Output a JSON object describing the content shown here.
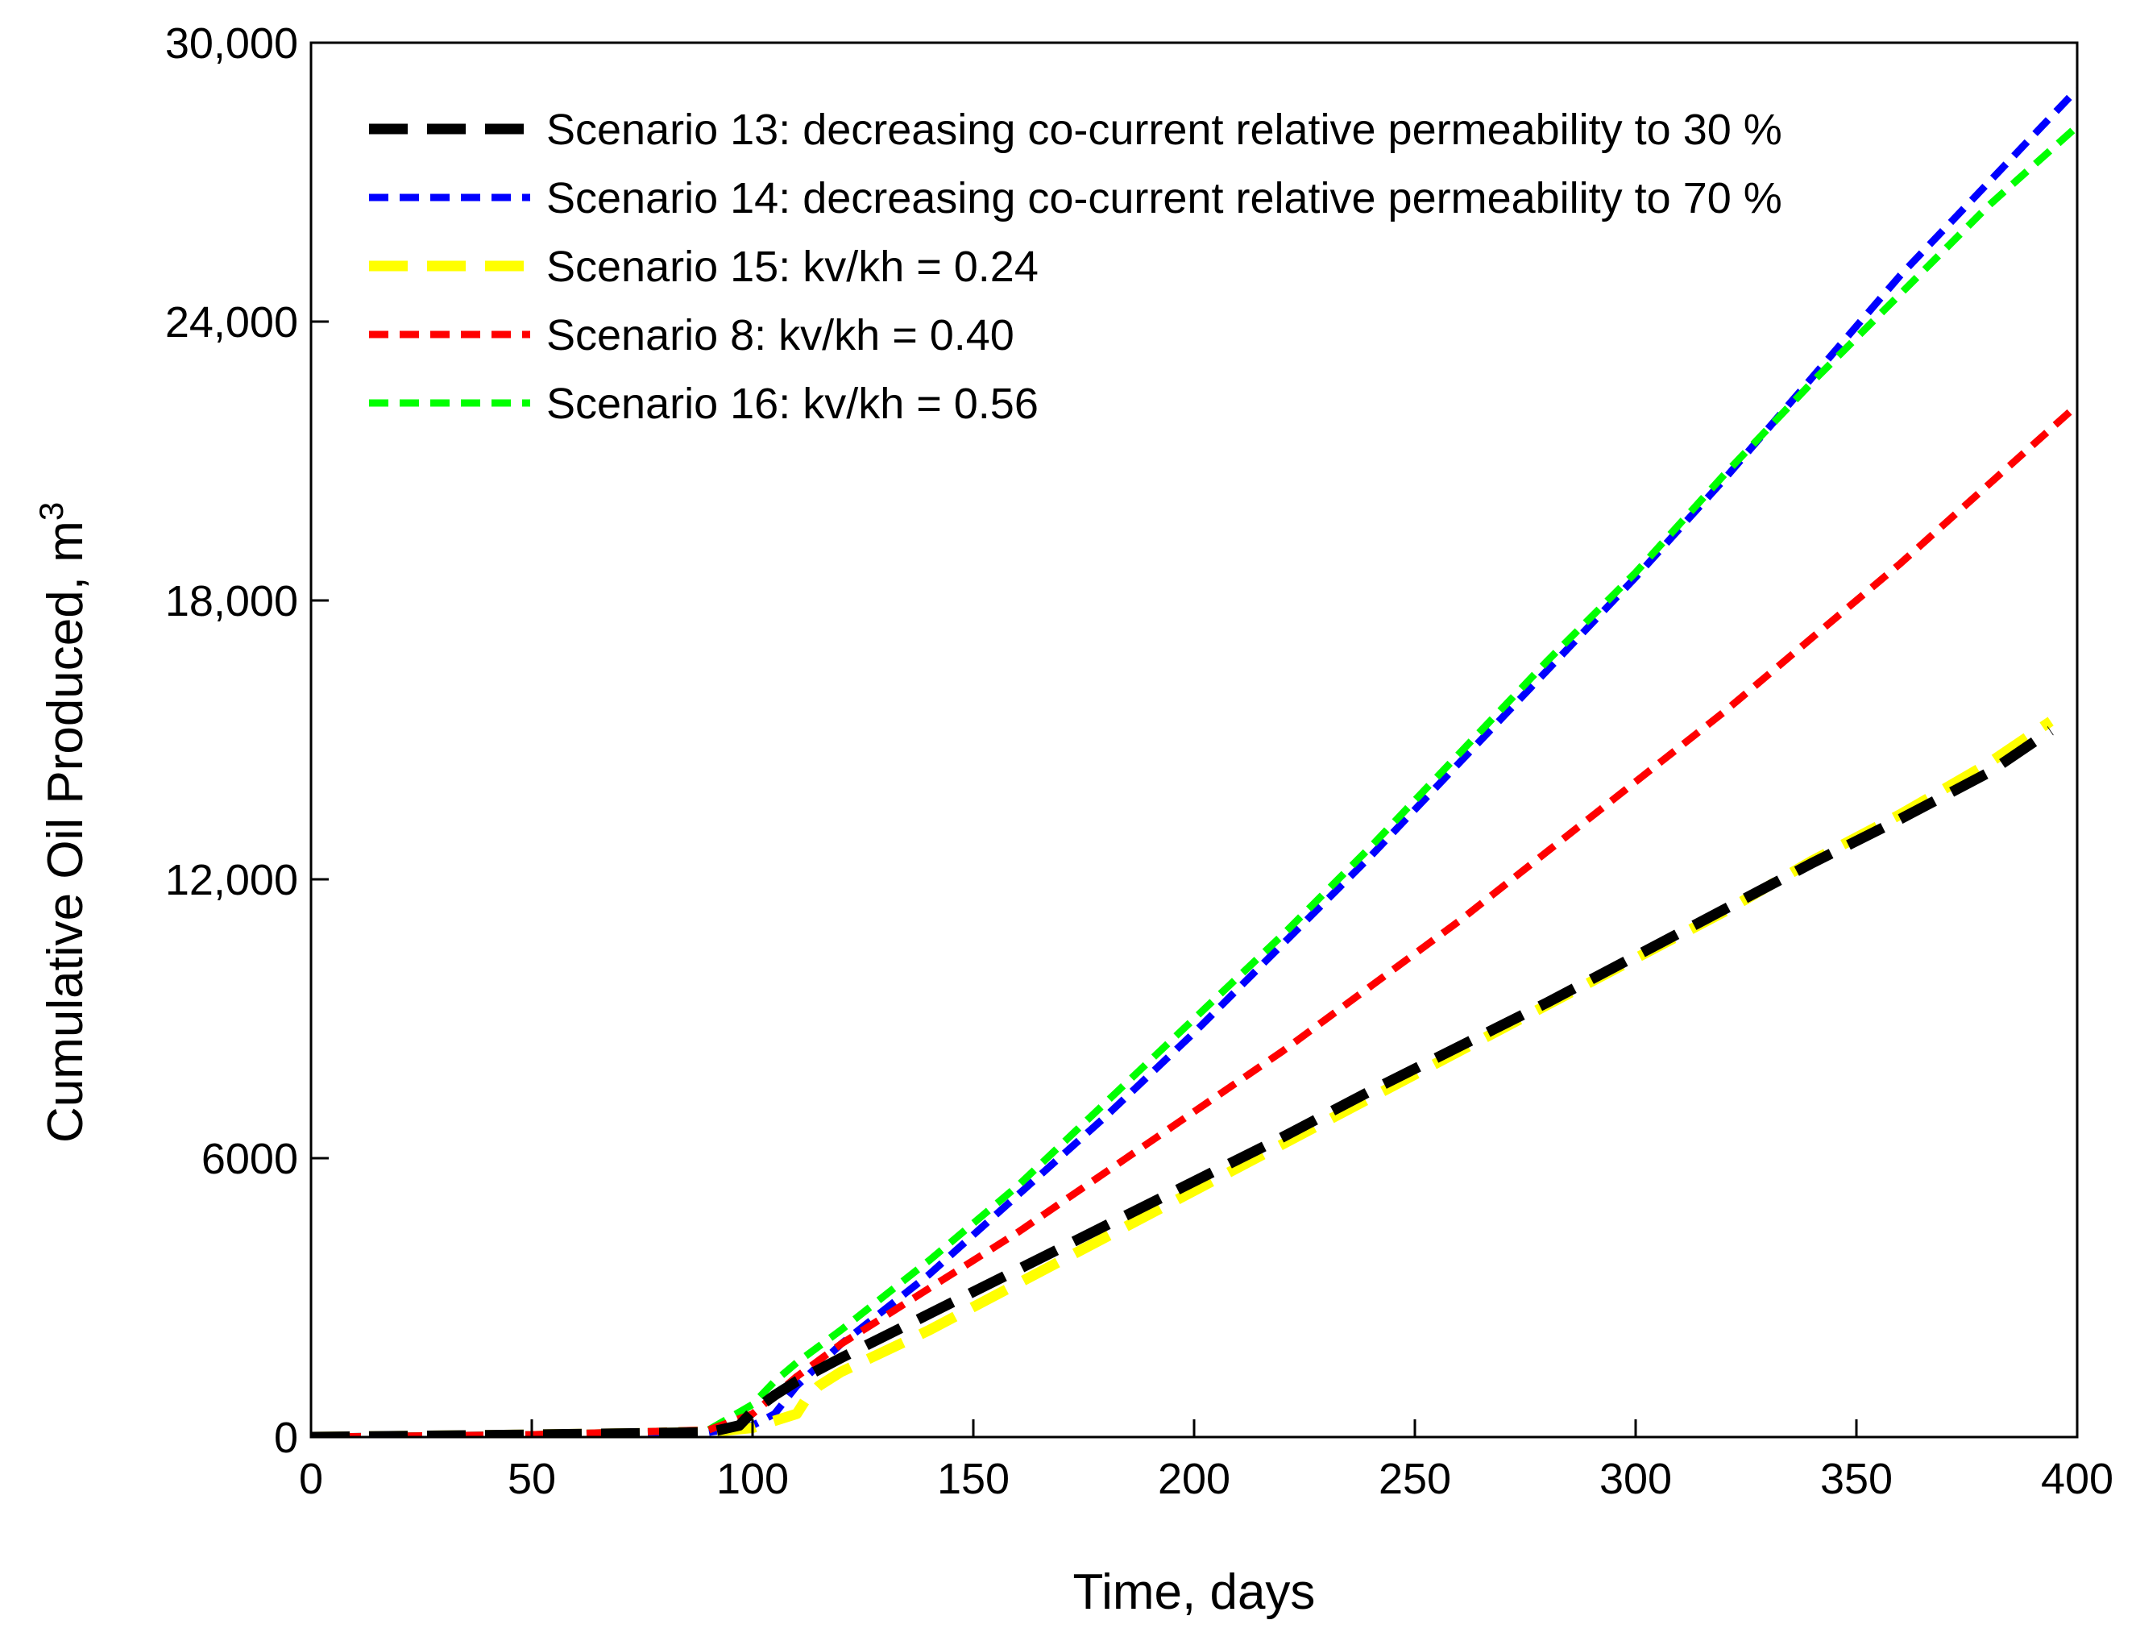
{
  "chart_data": {
    "type": "line",
    "title": "",
    "xlabel": "Time, days",
    "ylabel": "Cumulative Oil Produced, m",
    "ylabel_superscript": "3",
    "xlim": [
      0,
      400
    ],
    "ylim": [
      0,
      30000
    ],
    "x_ticks": [
      0,
      50,
      100,
      150,
      200,
      250,
      300,
      350,
      400
    ],
    "x_tick_labels": [
      "0",
      "50",
      "100",
      "150",
      "200",
      "250",
      "300",
      "350",
      "400"
    ],
    "y_ticks": [
      0,
      6000,
      12000,
      18000,
      24000,
      30000
    ],
    "y_tick_labels": [
      "0",
      "6000",
      "12,000",
      "18,000",
      "24,000",
      "30,000"
    ],
    "grid": false,
    "legend_position": "top-left",
    "series": [
      {
        "name": "Scenario 13: decreasing co-current relative permeability to 30 %",
        "color": "#000000",
        "dash": "long",
        "x": [
          0,
          50,
          90,
          97,
          100,
          105,
          110,
          120,
          140,
          160,
          180,
          200,
          220,
          240,
          260,
          280,
          300,
          320,
          340,
          360,
          380,
          394
        ],
        "y": [
          0,
          50,
          100,
          250,
          550,
          900,
          1200,
          1700,
          2650,
          3600,
          4550,
          5500,
          6450,
          7450,
          8400,
          9350,
          10350,
          11350,
          12350,
          13300,
          14300,
          15200
        ]
      },
      {
        "name": "Scenario 14: decreasing co-current relative permeability to 70 %",
        "color": "#0000ff",
        "dash": "short",
        "x": [
          0,
          50,
          90,
          100,
          105,
          110,
          120,
          140,
          160,
          180,
          200,
          220,
          240,
          260,
          280,
          300,
          320,
          340,
          360,
          380,
          400
        ],
        "y": [
          0,
          50,
          100,
          250,
          500,
          1100,
          2000,
          3500,
          5200,
          6900,
          8700,
          10600,
          12500,
          14500,
          16500,
          18500,
          20600,
          22800,
          25000,
          27000,
          29000
        ]
      },
      {
        "name": "Scenario 15: kv/kh = 0.24",
        "color": "#ffff00",
        "dash": "long",
        "x": [
          0,
          50,
          90,
          100,
          105,
          110,
          112,
          115,
          120,
          140,
          160,
          180,
          200,
          220,
          240,
          260,
          280,
          300,
          320,
          340,
          360,
          380,
          394
        ],
        "y": [
          0,
          50,
          100,
          200,
          350,
          500,
          800,
          1100,
          1400,
          2300,
          3300,
          4300,
          5300,
          6300,
          7300,
          8300,
          9300,
          10300,
          11300,
          12400,
          13400,
          14500,
          15400
        ]
      },
      {
        "name": "Scenario 8: kv/kh = 0.40",
        "color": "#ff0000",
        "dash": "short",
        "x": [
          0,
          50,
          90,
          100,
          105,
          110,
          120,
          140,
          160,
          180,
          200,
          220,
          240,
          260,
          280,
          300,
          320,
          340,
          360,
          380,
          400
        ],
        "y": [
          0,
          50,
          150,
          500,
          900,
          1300,
          2000,
          3200,
          4400,
          5700,
          7000,
          8300,
          9700,
          11100,
          12600,
          14100,
          15600,
          17200,
          18800,
          20500,
          22200
        ]
      },
      {
        "name": "Scenario 16: kv/kh = 0.56",
        "color": "#00ff00",
        "dash": "short",
        "x": [
          0,
          50,
          90,
          100,
          105,
          110,
          120,
          140,
          160,
          180,
          200,
          220,
          240,
          260,
          280,
          300,
          320,
          340,
          360,
          380,
          400
        ],
        "y": [
          0,
          50,
          150,
          700,
          1200,
          1600,
          2300,
          3800,
          5400,
          7200,
          9000,
          10800,
          12700,
          14700,
          16700,
          18600,
          20700,
          22700,
          24600,
          26500,
          28200
        ]
      }
    ]
  }
}
